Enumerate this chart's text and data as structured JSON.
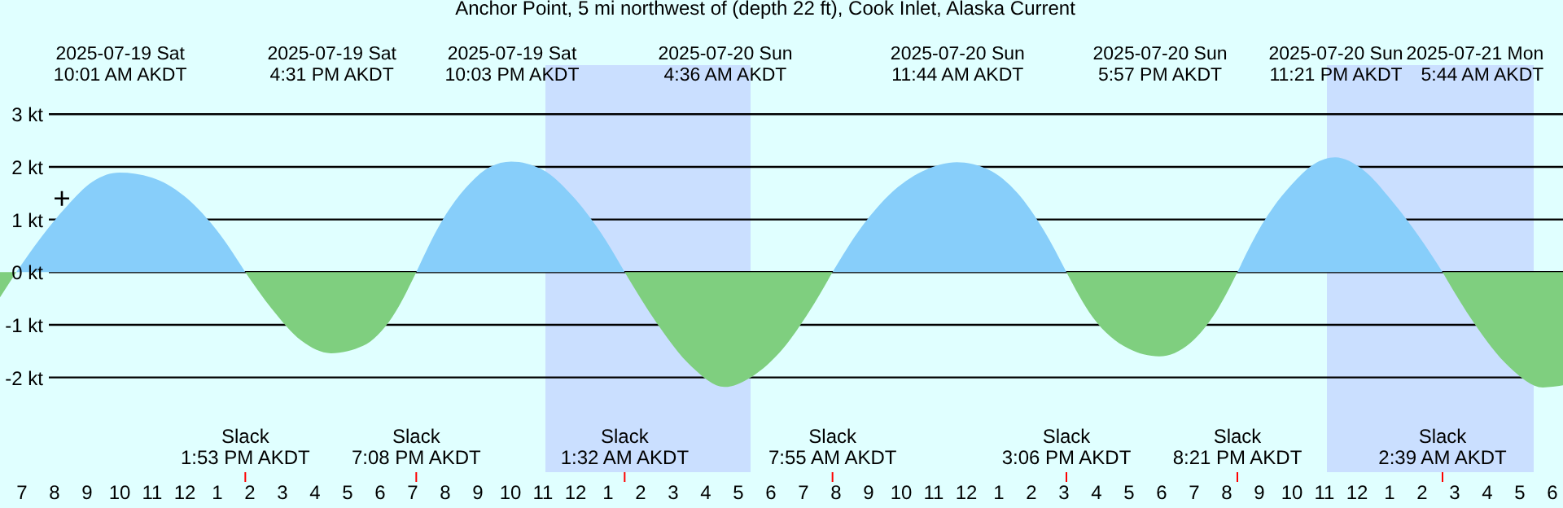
{
  "chart_data": {
    "type": "area",
    "title": "Anchor Point, 5 mi northwest of (depth 22 ft), Cook Inlet, Alaska Current",
    "x": [
      "2025-07-19T06:21",
      "2025-07-19T06:51",
      "2025-07-19T07:36",
      "2025-07-19T08:24",
      "2025-07-19T09:12",
      "2025-07-19T10:01",
      "2025-07-19T11:00",
      "2025-07-19T12:00",
      "2025-07-19T13:00",
      "2025-07-19T13:53",
      "2025-07-19T14:42",
      "2025-07-19T15:36",
      "2025-07-19T16:31",
      "2025-07-19T17:30",
      "2025-07-19T18:24",
      "2025-07-19T19:08",
      "2025-07-19T19:54",
      "2025-07-19T20:48",
      "2025-07-19T21:24",
      "2025-07-19T22:03",
      "2025-07-19T23:00",
      "2025-07-20T00:00",
      "2025-07-20T00:48",
      "2025-07-20T01:32",
      "2025-07-20T02:30",
      "2025-07-20T03:36",
      "2025-07-20T04:36",
      "2025-07-20T05:24",
      "2025-07-20T06:24",
      "2025-07-20T07:12",
      "2025-07-20T07:55",
      "2025-07-20T08:48",
      "2025-07-20T09:48",
      "2025-07-20T10:48",
      "2025-07-20T11:44",
      "2025-07-20T12:42",
      "2025-07-20T13:36",
      "2025-07-20T14:24",
      "2025-07-20T15:06",
      "2025-07-20T15:54",
      "2025-07-20T17:00",
      "2025-07-20T17:57",
      "2025-07-20T18:54",
      "2025-07-20T19:42",
      "2025-07-20T20:21",
      "2025-07-20T21:06",
      "2025-07-20T22:00",
      "2025-07-20T22:42",
      "2025-07-20T23:21",
      "2025-07-21T00:12",
      "2025-07-21T01:06",
      "2025-07-21T01:54",
      "2025-07-21T02:39",
      "2025-07-21T03:36",
      "2025-07-21T04:42",
      "2025-07-21T05:44",
      "2025-07-21T06:21"
    ],
    "series": [
      {
        "color": "#87cefa",
        "values": [
          null,
          0,
          0.65,
          1.25,
          1.72,
          1.89,
          1.8,
          1.45,
          0.8,
          0,
          null,
          null,
          null,
          null,
          null,
          0,
          0.95,
          1.7,
          2.0,
          2.1,
          1.95,
          1.4,
          0.75,
          0,
          null,
          null,
          null,
          null,
          null,
          null,
          0,
          0.85,
          1.55,
          1.95,
          2.09,
          1.95,
          1.5,
          0.8,
          0,
          null,
          null,
          null,
          null,
          null,
          0,
          0.9,
          1.65,
          2.05,
          2.18,
          1.95,
          1.35,
          0.7,
          0,
          null,
          null,
          null,
          null
        ]
      },
      {
        "color": "#7fcf7f",
        "values": [
          -0.48,
          0,
          null,
          null,
          null,
          null,
          null,
          null,
          null,
          0,
          -0.7,
          -1.3,
          -1.54,
          -1.4,
          -0.85,
          0,
          null,
          null,
          null,
          null,
          null,
          null,
          null,
          0,
          -0.95,
          -1.8,
          -2.18,
          -2.0,
          -1.45,
          -0.75,
          0,
          null,
          null,
          null,
          null,
          null,
          null,
          null,
          0,
          -0.85,
          -1.45,
          -1.6,
          -1.35,
          -0.75,
          0,
          null,
          null,
          null,
          null,
          null,
          null,
          null,
          0,
          -0.95,
          -1.8,
          -2.19,
          -2.15
        ]
      },
      {
        "type": "scatter",
        "color": "#000000",
        "marker": "cross",
        "x": [
          "2025-07-19T08:15"
        ],
        "values": [
          1.4
        ]
      }
    ],
    "xlim": [
      "2025-07-19T06:21",
      "2025-07-21T06:21"
    ],
    "xticks": [
      {
        "value": "2025-07-19T07:00",
        "label": "7"
      },
      {
        "value": "2025-07-19T08:00",
        "label": "8"
      },
      {
        "value": "2025-07-19T09:00",
        "label": "9"
      },
      {
        "value": "2025-07-19T10:00",
        "label": "10"
      },
      {
        "value": "2025-07-19T11:00",
        "label": "11"
      },
      {
        "value": "2025-07-19T12:00",
        "label": "12"
      },
      {
        "value": "2025-07-19T13:00",
        "label": "1"
      },
      {
        "value": "2025-07-19T14:00",
        "label": "2"
      },
      {
        "value": "2025-07-19T15:00",
        "label": "3"
      },
      {
        "value": "2025-07-19T16:00",
        "label": "4"
      },
      {
        "value": "2025-07-19T17:00",
        "label": "5"
      },
      {
        "value": "2025-07-19T18:00",
        "label": "6"
      },
      {
        "value": "2025-07-19T19:00",
        "label": "7"
      },
      {
        "value": "2025-07-19T20:00",
        "label": "8"
      },
      {
        "value": "2025-07-19T21:00",
        "label": "9"
      },
      {
        "value": "2025-07-19T22:00",
        "label": "10"
      },
      {
        "value": "2025-07-19T23:00",
        "label": "11"
      },
      {
        "value": "2025-07-20T00:00",
        "label": "12"
      },
      {
        "value": "2025-07-20T01:00",
        "label": "1"
      },
      {
        "value": "2025-07-20T02:00",
        "label": "2"
      },
      {
        "value": "2025-07-20T03:00",
        "label": "3"
      },
      {
        "value": "2025-07-20T04:00",
        "label": "4"
      },
      {
        "value": "2025-07-20T05:00",
        "label": "5"
      },
      {
        "value": "2025-07-20T06:00",
        "label": "6"
      },
      {
        "value": "2025-07-20T07:00",
        "label": "7"
      },
      {
        "value": "2025-07-20T08:00",
        "label": "8"
      },
      {
        "value": "2025-07-20T09:00",
        "label": "9"
      },
      {
        "value": "2025-07-20T10:00",
        "label": "10"
      },
      {
        "value": "2025-07-20T11:00",
        "label": "11"
      },
      {
        "value": "2025-07-20T12:00",
        "label": "12"
      },
      {
        "value": "2025-07-20T13:00",
        "label": "1"
      },
      {
        "value": "2025-07-20T14:00",
        "label": "2"
      },
      {
        "value": "2025-07-20T15:00",
        "label": "3"
      },
      {
        "value": "2025-07-20T16:00",
        "label": "4"
      },
      {
        "value": "2025-07-20T17:00",
        "label": "5"
      },
      {
        "value": "2025-07-20T18:00",
        "label": "6"
      },
      {
        "value": "2025-07-20T19:00",
        "label": "7"
      },
      {
        "value": "2025-07-20T20:00",
        "label": "8"
      },
      {
        "value": "2025-07-20T21:00",
        "label": "9"
      },
      {
        "value": "2025-07-20T22:00",
        "label": "10"
      },
      {
        "value": "2025-07-20T23:00",
        "label": "11"
      },
      {
        "value": "2025-07-21T00:00",
        "label": "12"
      },
      {
        "value": "2025-07-21T01:00",
        "label": "1"
      },
      {
        "value": "2025-07-21T02:00",
        "label": "2"
      },
      {
        "value": "2025-07-21T03:00",
        "label": "3"
      },
      {
        "value": "2025-07-21T04:00",
        "label": "4"
      },
      {
        "value": "2025-07-21T05:00",
        "label": "5"
      },
      {
        "value": "2025-07-21T06:00",
        "label": "6"
      }
    ],
    "x2lim": [
      "2025-07-19T06:21",
      "2025-07-21T06:21"
    ],
    "x2ticks": [
      {
        "value": "2025-07-19T10:01",
        "label": "2025-07-19 Sat\n10:01 AM AKDT"
      },
      {
        "value": "2025-07-19T16:31",
        "label": "2025-07-19 Sat\n4:31 PM AKDT"
      },
      {
        "value": "2025-07-19T22:03",
        "label": "2025-07-19 Sat\n10:03 PM AKDT"
      },
      {
        "value": "2025-07-20T04:36",
        "label": "2025-07-20 Sun\n4:36 AM AKDT"
      },
      {
        "value": "2025-07-20T11:44",
        "label": "2025-07-20 Sun\n11:44 AM AKDT"
      },
      {
        "value": "2025-07-20T17:57",
        "label": "2025-07-20 Sun\n5:57 PM AKDT"
      },
      {
        "value": "2025-07-20T23:21",
        "label": "2025-07-20 Sun\n11:21 PM AKDT"
      },
      {
        "value": "2025-07-21T05:44",
        "label": "2025-07-21 Mon\n5:44 AM AKDT"
      }
    ],
    "ylim": [
      -4.48,
      5.17
    ],
    "yticks": [
      {
        "value": -2,
        "label": "-2 kt"
      },
      {
        "value": -1,
        "label": "-1 kt"
      },
      {
        "value": 0,
        "label": "0 kt"
      },
      {
        "value": 1,
        "label": "1 kt"
      },
      {
        "value": 2,
        "label": "2 kt"
      },
      {
        "value": 3,
        "label": "3 kt"
      }
    ],
    "grid": "y",
    "bands": [
      {
        "axis": "x",
        "from": "2025-07-19T23:06",
        "to": "2025-07-20T05:24",
        "color": "#cadfff"
      },
      {
        "axis": "x",
        "from": "2025-07-20T23:06",
        "to": "2025-07-21T05:27",
        "color": "#cadfff"
      }
    ],
    "annotations": [
      {
        "text": "Slack\n1:53 PM AKDT",
        "x": "2025-07-19T13:53"
      },
      {
        "text": "Slack\n7:08 PM AKDT",
        "x": "2025-07-19T19:08"
      },
      {
        "text": "Slack\n1:32 AM AKDT",
        "x": "2025-07-20T01:32"
      },
      {
        "text": "Slack\n7:55 AM AKDT",
        "x": "2025-07-20T07:55"
      },
      {
        "text": "Slack\n3:06 PM AKDT",
        "x": "2025-07-20T15:06"
      },
      {
        "text": "Slack\n8:21 PM AKDT",
        "x": "2025-07-20T20:21"
      },
      {
        "text": "Slack\n2:39 AM AKDT",
        "x": "2025-07-21T02:39"
      }
    ]
  }
}
